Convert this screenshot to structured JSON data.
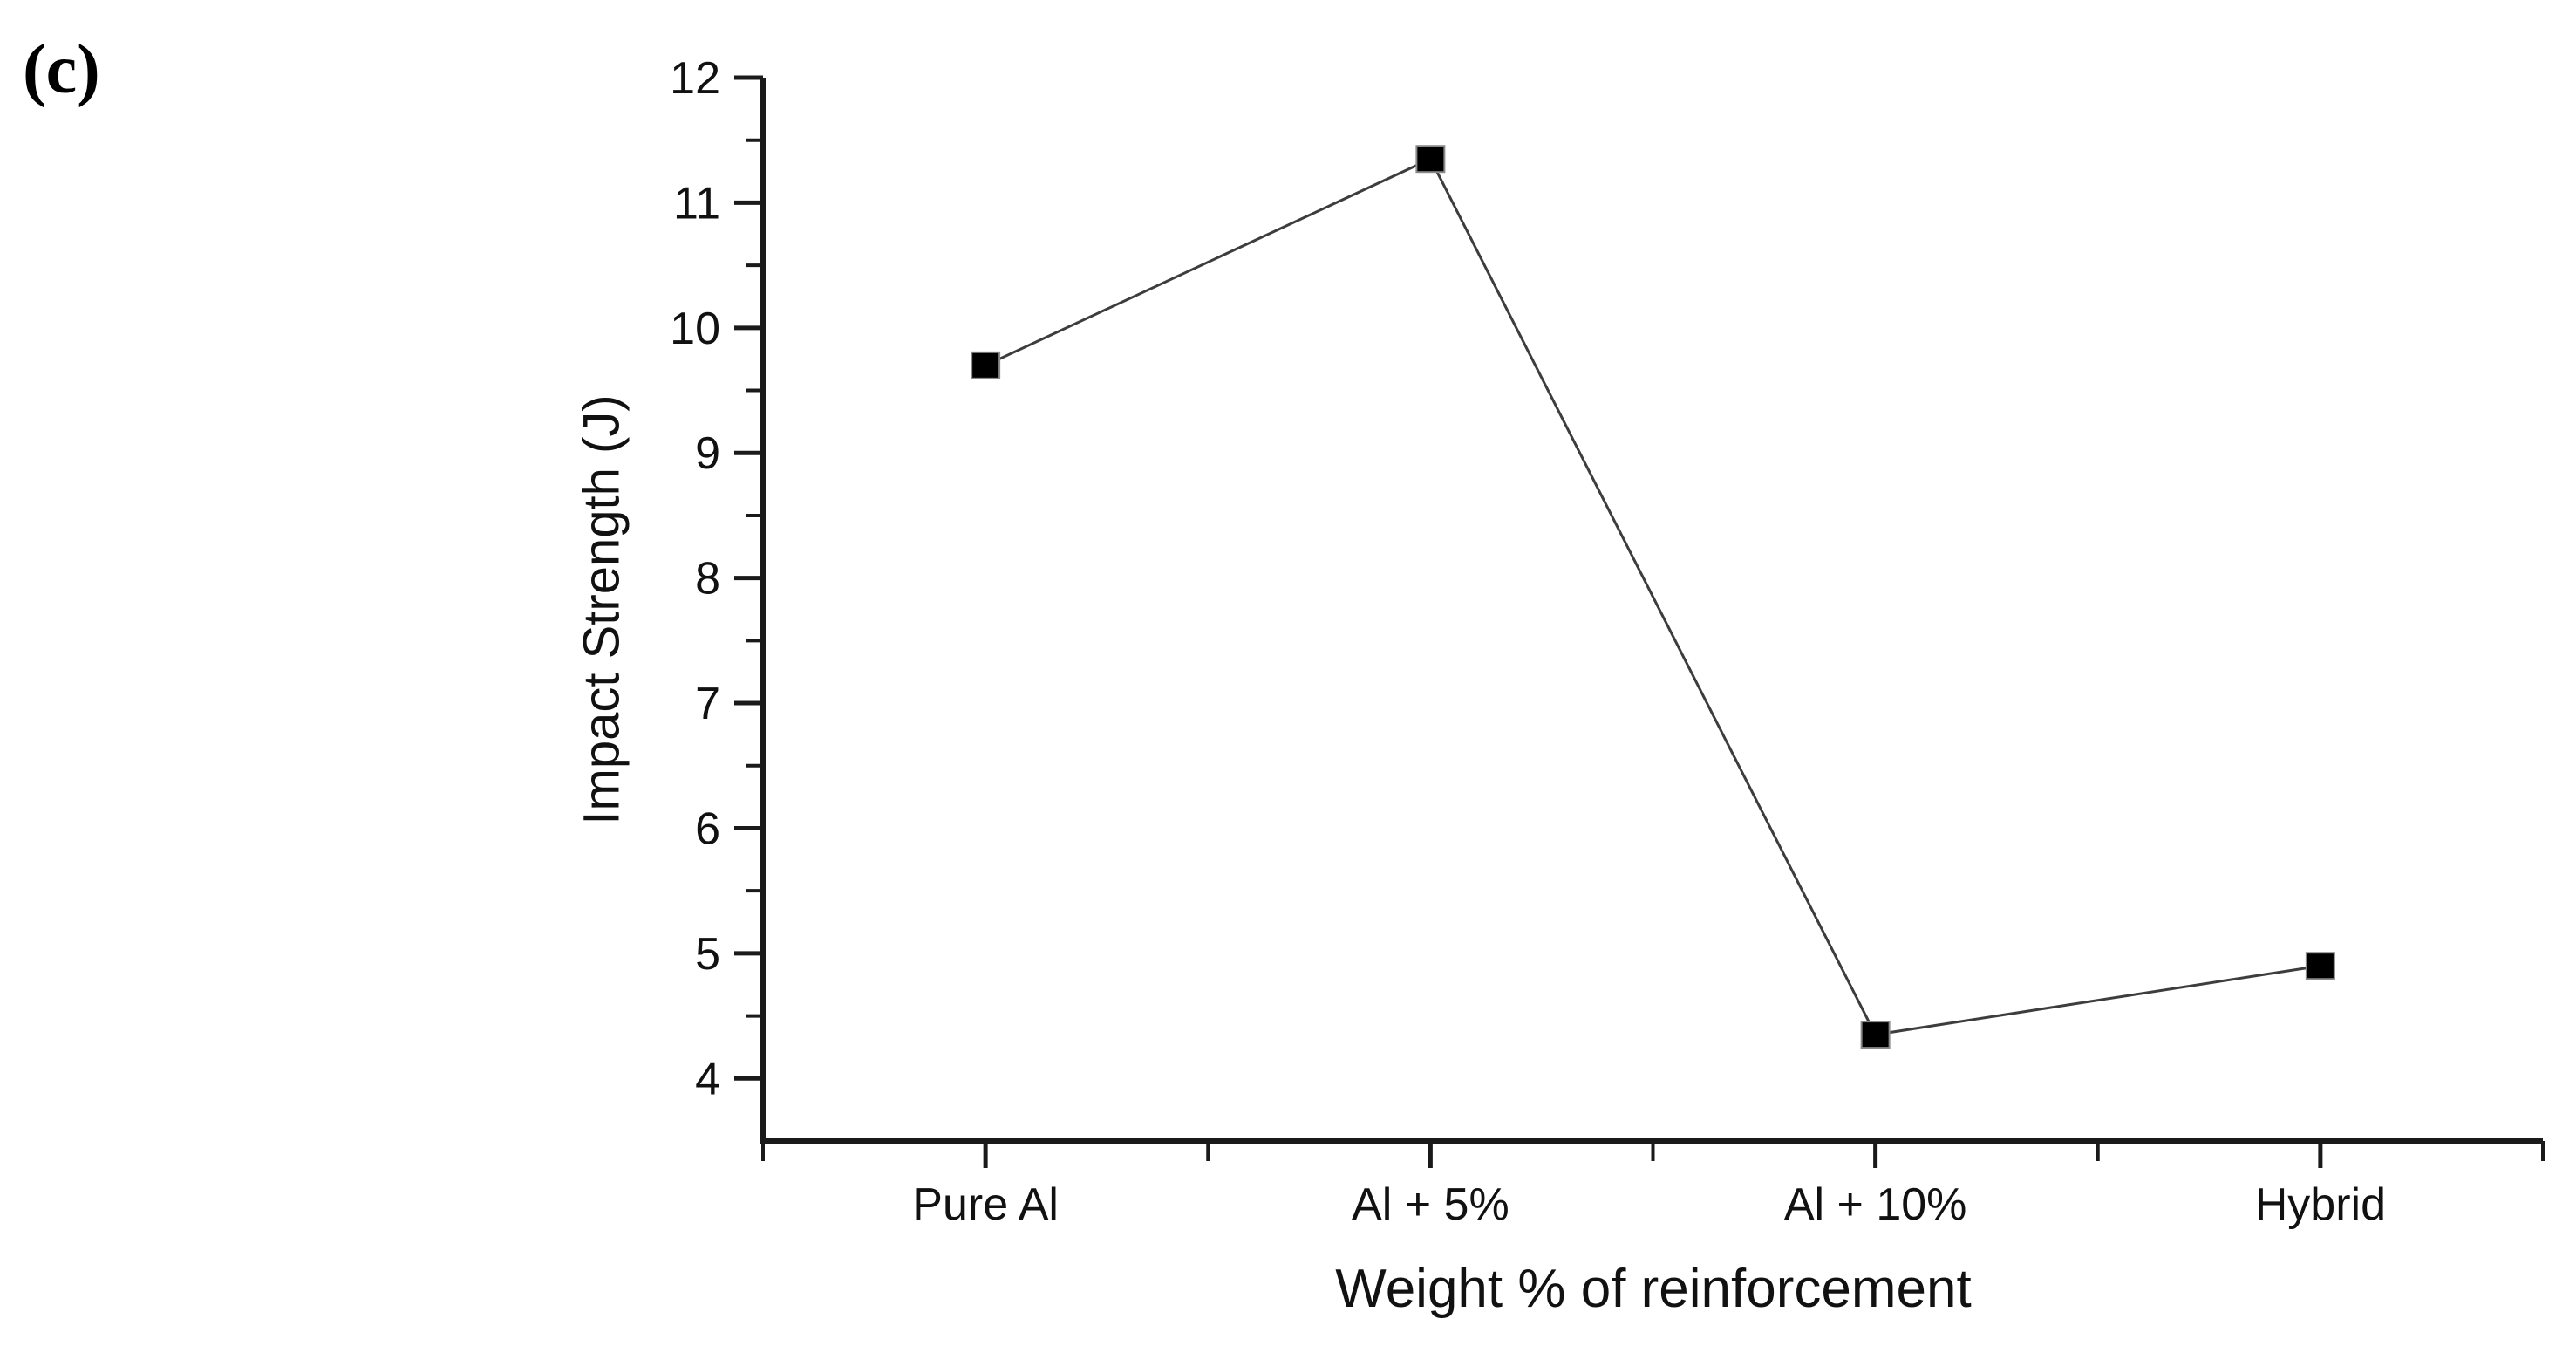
{
  "panel_label": "(c)",
  "chart_data": {
    "type": "line",
    "categories": [
      "Pure Al",
      "Al + 5%",
      "Al + 10%",
      "Hybrid"
    ],
    "series": [
      {
        "name": "Impact Strength",
        "values": [
          9.7,
          11.35,
          4.35,
          4.9
        ]
      }
    ],
    "title": "",
    "xlabel": "Weight % of reinforcement",
    "ylabel": "Impact Strength (J)",
    "ylim": [
      3.5,
      12
    ],
    "yticks_major": [
      4,
      5,
      6,
      7,
      8,
      9,
      10,
      11,
      12
    ],
    "yticks_minor": [
      4.5,
      5.5,
      6.5,
      7.5,
      8.5,
      9.5,
      10.5,
      11.5
    ],
    "x_minor_slots": [
      0,
      1,
      2,
      3,
      4
    ],
    "marker_shape": "square",
    "grid": false,
    "legend_position": "none",
    "colors": {
      "background": "#ffffff",
      "axis": "#1a1a1a",
      "text": "#111111",
      "line": "#3d3d3d",
      "marker_fill": "#000000",
      "marker_edge": "#8a8a8a"
    }
  }
}
